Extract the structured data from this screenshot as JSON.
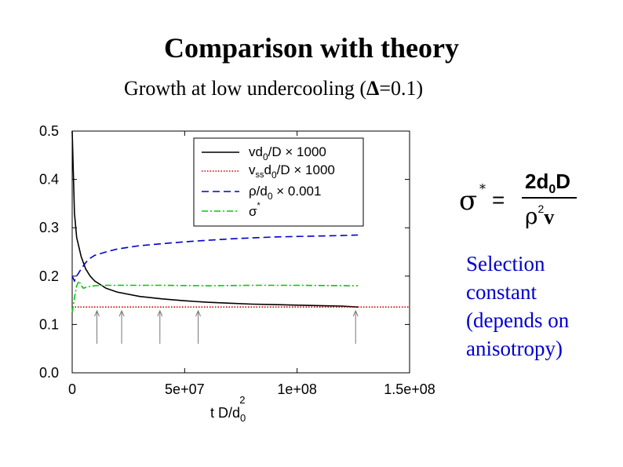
{
  "header": {
    "title": "Comparison with theory",
    "subtitle_prefix": "Growth at low undercooling (",
    "subtitle_delta": "Δ",
    "subtitle_suffix": "=0.1)"
  },
  "formula": {
    "lhs": "σ",
    "star": "*",
    "equals": "=",
    "numerator": "2d",
    "num_sub": "0",
    "num_tail": "D",
    "den_rho": "ρ",
    "den_sup": "2",
    "den_v": "v"
  },
  "annotation": {
    "lines": [
      "Selection",
      "constant",
      "(depends on",
      "anisotropy)"
    ]
  },
  "chart_data": {
    "type": "line",
    "xlabel": "t D/d0²",
    "xlabel_main": "t D/d",
    "xlabel_sub": "0",
    "xlabel_sup": "2",
    "xlim": [
      0,
      150000000
    ],
    "ylim": [
      0,
      0.5
    ],
    "x_ticks": [
      0,
      50000000,
      100000000,
      150000000
    ],
    "x_tick_labels": [
      "0",
      "5e+07",
      "1e+08",
      "1.5e+08"
    ],
    "y_ticks": [
      0,
      0.1,
      0.2,
      0.3,
      0.4,
      0.5
    ],
    "y_tick_labels": [
      "0.0",
      "0.1",
      "0.2",
      "0.3",
      "0.4",
      "0.5"
    ],
    "legend_placement": "top-right",
    "series": [
      {
        "name": "vd0/D × 1000",
        "legend_main": "vd",
        "legend_sub": "0",
        "legend_tail": "/D × 1000",
        "color": "#000000",
        "dash": "solid",
        "x": [
          0,
          1000000,
          2000000,
          4000000,
          6000000,
          8000000,
          10000000,
          15000000,
          20000000,
          30000000,
          40000000,
          50000000,
          60000000,
          70000000,
          80000000,
          90000000,
          100000000,
          110000000,
          120000000,
          127000000
        ],
        "y": [
          0.5,
          0.33,
          0.28,
          0.24,
          0.215,
          0.2,
          0.19,
          0.175,
          0.167,
          0.158,
          0.153,
          0.149,
          0.146,
          0.144,
          0.142,
          0.141,
          0.14,
          0.139,
          0.138,
          0.136
        ]
      },
      {
        "name": "vssd0/D × 1000",
        "legend_main": "v",
        "legend_sub": "ss",
        "legend_tail": "d",
        "legend_sub2": "0",
        "legend_tail2": "/D × 1000",
        "color": "#cc0000",
        "dash": "dotted",
        "x": [
          0,
          150000000
        ],
        "y": [
          0.136,
          0.136
        ]
      },
      {
        "name": "ρ/d0 × 0.001",
        "legend_main": "ρ/d",
        "legend_sub": "0",
        "legend_tail": " × 0.001",
        "color": "#0000cc",
        "dash": "dashed",
        "x": [
          0,
          1000000,
          2000000,
          4000000,
          6000000,
          8000000,
          10000000,
          15000000,
          20000000,
          30000000,
          40000000,
          50000000,
          60000000,
          70000000,
          80000000,
          90000000,
          100000000,
          110000000,
          120000000,
          127000000
        ],
        "y": [
          0.2,
          0.19,
          0.2,
          0.215,
          0.228,
          0.237,
          0.243,
          0.25,
          0.256,
          0.263,
          0.267,
          0.271,
          0.274,
          0.277,
          0.279,
          0.281,
          0.282,
          0.283,
          0.284,
          0.285
        ]
      },
      {
        "name": "σ*",
        "legend_main": "σ",
        "legend_sup": "*",
        "color": "#00cc00",
        "dash": "dashdot",
        "x": [
          0,
          1000000,
          2000000,
          3000000,
          4000000,
          5000000,
          7000000,
          10000000,
          15000000,
          20000000,
          40000000,
          60000000,
          80000000,
          100000000,
          127000000
        ],
        "y": [
          0.125,
          0.155,
          0.18,
          0.19,
          0.18,
          0.175,
          0.178,
          0.18,
          0.181,
          0.181,
          0.181,
          0.18,
          0.181,
          0.181,
          0.18
        ]
      }
    ],
    "arrow_markers_x": [
      11000000,
      22000000,
      39000000,
      56000000,
      126000000
    ]
  }
}
